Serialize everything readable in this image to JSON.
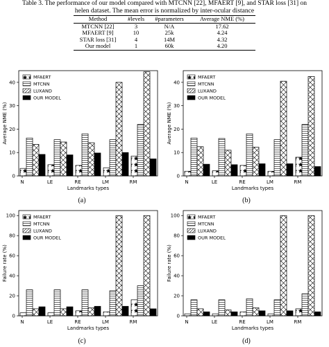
{
  "caption": {
    "line1": "Table 3. The performance of our model compared with MTCNN [22], MFAERT [9], and STAR loss [31] on",
    "line2": "helen dataset. The mean error is normalized by inter-ocular distance"
  },
  "table": {
    "headers": [
      "Method",
      "#levels",
      "#parameters",
      "Average NME (%)"
    ],
    "rows": [
      [
        "MTCNN [22]",
        "3",
        "N/A",
        "17.62"
      ],
      [
        "MFAERT [9]",
        "10",
        "25k",
        "4.24"
      ],
      [
        "STAR loss [31]",
        "4",
        "14M",
        "4.32"
      ],
      [
        "Our model",
        "1",
        "60k",
        "4.20"
      ]
    ]
  },
  "chart_data": [
    {
      "type": "bar",
      "panel": "(a)",
      "categories": [
        "N",
        "LE",
        "RE",
        "LM",
        "RM"
      ],
      "xlabel": "Landmarks types",
      "ylabel": "Average NME (%)",
      "ylim": [
        0,
        45
      ],
      "yticks": [
        0,
        10,
        20,
        30,
        40
      ],
      "legend": "top-left",
      "series": [
        {
          "name": "MFAERT",
          "values": [
            3.2,
            4.8,
            4.5,
            3.5,
            8.5
          ]
        },
        {
          "name": "MTCNN",
          "values": [
            16.2,
            15.5,
            18.0,
            15.5,
            22.0
          ]
        },
        {
          "name": "LUXAND",
          "values": [
            13.5,
            14.5,
            14.2,
            40.0,
            44.5
          ]
        },
        {
          "name": "OUR MODEL",
          "values": [
            9.2,
            9.0,
            9.8,
            10.0,
            7.3
          ]
        }
      ]
    },
    {
      "type": "bar",
      "panel": "(b)",
      "categories": [
        "N",
        "LE",
        "RE",
        "LM",
        "RM"
      ],
      "xlabel": "Landmarks types",
      "ylabel": "Average NME (%)",
      "ylim": [
        0,
        45
      ],
      "yticks": [
        0,
        10,
        20,
        30,
        40
      ],
      "legend": "top-left",
      "series": [
        {
          "name": "MFAERT",
          "values": [
            2.0,
            2.2,
            4.5,
            2.0,
            8.0
          ]
        },
        {
          "name": "MTCNN",
          "values": [
            16.2,
            16.0,
            18.0,
            15.5,
            22.0
          ]
        },
        {
          "name": "LUXAND",
          "values": [
            12.5,
            11.0,
            12.3,
            40.5,
            42.5
          ]
        },
        {
          "name": "OUR MODEL",
          "values": [
            5.0,
            4.8,
            5.2,
            5.2,
            4.0
          ]
        }
      ]
    },
    {
      "type": "bar",
      "panel": "(c)",
      "categories": [
        "N",
        "LE",
        "RE",
        "LM",
        "RM"
      ],
      "xlabel": "Landmarks types",
      "ylabel": "Failure rate (%)",
      "ylim": [
        0,
        105
      ],
      "yticks": [
        0,
        20,
        40,
        60,
        80,
        100
      ],
      "legend": "top-left",
      "series": [
        {
          "name": "MFAERT",
          "values": [
            3.0,
            3.0,
            5.0,
            4.0,
            16.0
          ]
        },
        {
          "name": "MTCNN",
          "values": [
            26.0,
            26.0,
            26.0,
            25.0,
            30.0
          ]
        },
        {
          "name": "LUXAND",
          "values": [
            7.0,
            7.0,
            8.0,
            100.0,
            100.0
          ]
        },
        {
          "name": "OUR MODEL",
          "values": [
            9.0,
            9.0,
            9.5,
            9.5,
            7.0
          ]
        }
      ]
    },
    {
      "type": "bar",
      "panel": "(d)",
      "categories": [
        "N",
        "LE",
        "RE",
        "LM",
        "RM"
      ],
      "xlabel": "Landmarks types",
      "ylabel": "Failure rate (%)",
      "ylim": [
        0,
        105
      ],
      "yticks": [
        0,
        20,
        40,
        60,
        80,
        100
      ],
      "legend": "top-left",
      "series": [
        {
          "name": "MFAERT",
          "values": [
            2.0,
            2.0,
            4.0,
            2.0,
            7.0
          ]
        },
        {
          "name": "MTCNN",
          "values": [
            16.0,
            16.0,
            17.0,
            16.0,
            22.0
          ]
        },
        {
          "name": "LUXAND",
          "values": [
            7.0,
            6.0,
            8.0,
            100.0,
            100.0
          ]
        },
        {
          "name": "OUR MODEL",
          "values": [
            4.0,
            4.0,
            5.0,
            5.0,
            4.0
          ]
        }
      ]
    }
  ]
}
